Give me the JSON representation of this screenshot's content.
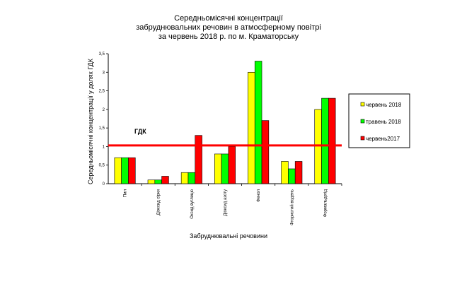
{
  "chart_data": {
    "type": "bar",
    "title_lines": [
      "Середньомісячні концентрації",
      "забруднювальних  речовин  в атмосферному повітрі",
      "за червень 2018 р. по м. Краматорську"
    ],
    "xlabel": "Забруднювальні речовини",
    "ylabel": "Середньомісячні концентрації у  долях ГДК",
    "ylim": [
      0,
      3.5
    ],
    "yticks": [
      "0",
      "0,5",
      "1",
      "1,5",
      "2",
      "2,5",
      "3",
      "3,5"
    ],
    "ytick_values": [
      0,
      0.5,
      1,
      1.5,
      2,
      2.5,
      3,
      3.5
    ],
    "categories": [
      "Пил",
      "Діоксид сірки",
      "Оксид вуглецю",
      "Діоксид азоту",
      "Фенол",
      "Фтористий водень",
      "Формальдегід"
    ],
    "series": [
      {
        "name": "червень 2018",
        "color": "#FFFF00",
        "values": [
          0.7,
          0.1,
          0.3,
          0.8,
          3.0,
          0.6,
          2.0
        ]
      },
      {
        "name": "травень 2018",
        "color": "#00FF00",
        "values": [
          0.7,
          0.1,
          0.3,
          0.8,
          3.3,
          0.4,
          2.3
        ]
      },
      {
        "name": "червень2017",
        "color": "#FF0000",
        "values": [
          0.7,
          0.2,
          1.3,
          1.0,
          1.7,
          0.6,
          2.3
        ]
      }
    ],
    "reference_line": {
      "label": "ГДК",
      "value": 1.03,
      "color": "#FF0000"
    },
    "legend_position": "right",
    "grid": false
  }
}
